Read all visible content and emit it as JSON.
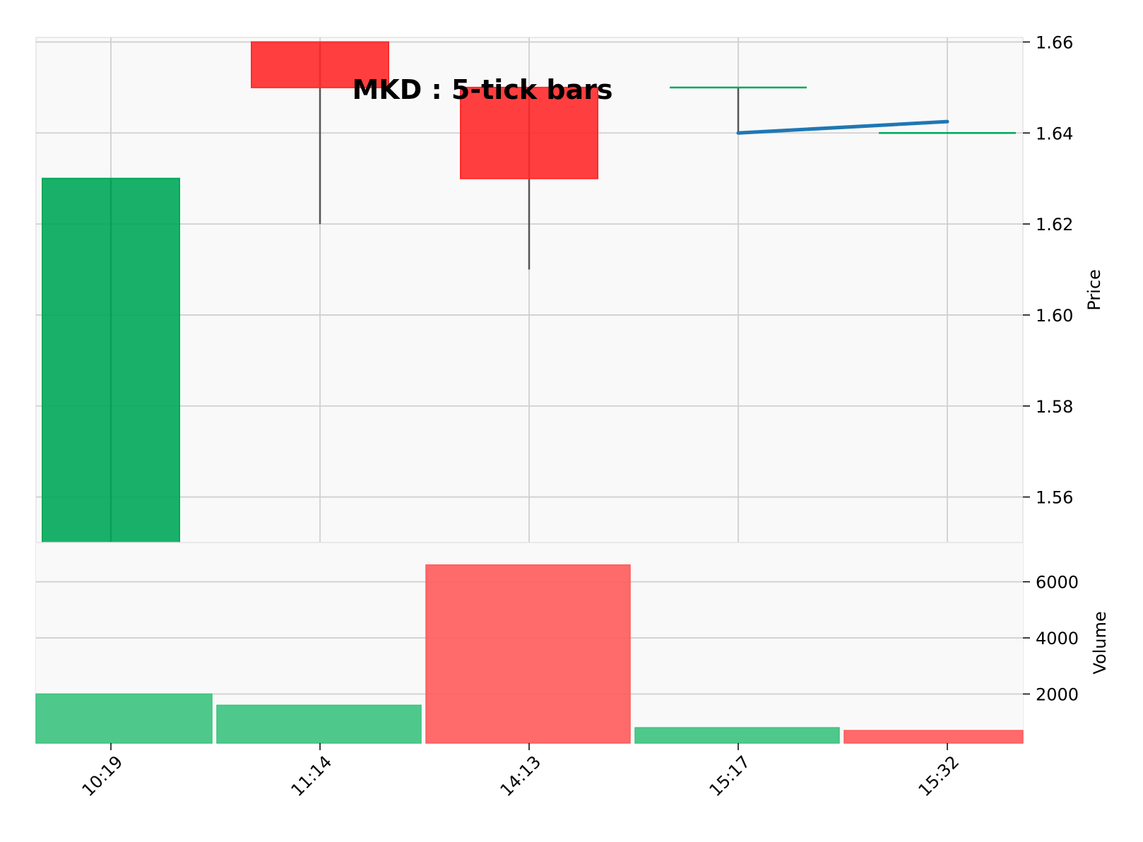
{
  "chart_data": {
    "type": "candlestick",
    "title": "MKD : 5-tick bars",
    "x_labels": [
      "10:19",
      "11:14",
      "14:13",
      "15:17",
      "15:32"
    ],
    "ohlc": [
      {
        "time": "10:19",
        "open": 1.55,
        "high": 1.63,
        "low": 1.55,
        "close": 1.63
      },
      {
        "time": "11:14",
        "open": 1.66,
        "high": 1.66,
        "low": 1.62,
        "close": 1.65
      },
      {
        "time": "14:13",
        "open": 1.65,
        "high": 1.65,
        "low": 1.61,
        "close": 1.63
      },
      {
        "time": "15:17",
        "open": 1.65,
        "high": 1.65,
        "low": 1.64,
        "close": 1.65
      },
      {
        "time": "15:32",
        "open": 1.64,
        "high": 1.64,
        "low": 1.64,
        "close": 1.64
      }
    ],
    "volume": [
      2000,
      1600,
      6600,
      800,
      700
    ],
    "volume_up": [
      true,
      true,
      false,
      true,
      false
    ],
    "moving_average": {
      "points": [
        [
          3,
          1.64
        ],
        [
          4,
          1.6425
        ]
      ]
    },
    "price_axis": {
      "label": "Price",
      "ticks": [
        1.56,
        1.58,
        1.6,
        1.62,
        1.64,
        1.66
      ],
      "range": [
        1.55,
        1.661
      ]
    },
    "volume_axis": {
      "label": "Volume",
      "ticks": [
        2000,
        4000,
        6000
      ],
      "range": [
        250,
        7400
      ]
    },
    "colors": {
      "up": "#00a85a",
      "down": "#ff2a2a",
      "up_volume": "#3cc27e",
      "down_volume": "#ff5a5a",
      "wick": "#555555",
      "ma": "#1f77b4",
      "grid": "#d0d0d0",
      "panel_bg": "#f9f9f9"
    },
    "grid": true
  }
}
